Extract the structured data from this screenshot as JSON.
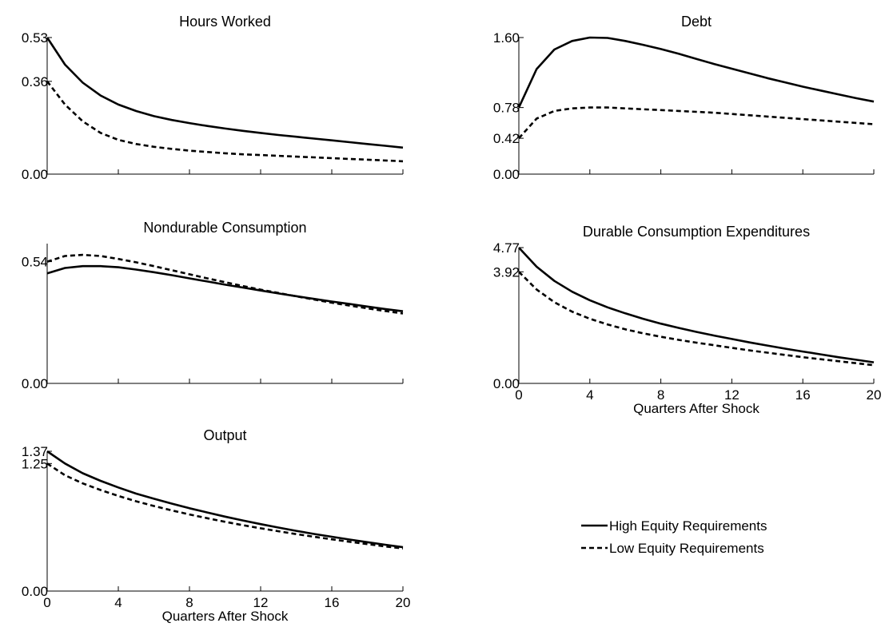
{
  "figure": {
    "legend": {
      "placement": "lower-right",
      "entries": [
        {
          "label": "High Equity Requirements",
          "style": "solid"
        },
        {
          "label": "Low Equity Requirements",
          "style": "dashed"
        }
      ]
    }
  },
  "chart_data": [
    {
      "type": "line",
      "title": "Hours Worked",
      "xlabel": "",
      "ylabel": "",
      "ylim": [
        0,
        0.53
      ],
      "yticks": [
        "0.53",
        "0.36",
        "0.00"
      ],
      "xticks": [],
      "x": [
        0,
        1,
        2,
        3,
        4,
        5,
        6,
        7,
        8,
        9,
        10,
        11,
        12,
        13,
        14,
        15,
        16,
        17,
        18,
        19,
        20
      ],
      "series": [
        {
          "name": "High Equity Requirements",
          "style": "solid",
          "values": [
            0.53,
            0.425,
            0.355,
            0.305,
            0.27,
            0.245,
            0.225,
            0.21,
            0.198,
            0.187,
            0.177,
            0.168,
            0.16,
            0.152,
            0.145,
            0.138,
            0.131,
            0.124,
            0.117,
            0.11,
            0.103
          ]
        },
        {
          "name": "Low Equity Requirements",
          "style": "dashed",
          "values": [
            0.36,
            0.27,
            0.205,
            0.16,
            0.133,
            0.117,
            0.106,
            0.098,
            0.091,
            0.086,
            0.081,
            0.077,
            0.074,
            0.071,
            0.068,
            0.065,
            0.062,
            0.059,
            0.056,
            0.053,
            0.05
          ]
        }
      ]
    },
    {
      "type": "line",
      "title": "Debt",
      "xlabel": "",
      "ylabel": "",
      "ylim": [
        0,
        1.6
      ],
      "yticks": [
        "1.60",
        "0.78",
        "0.42",
        "0.00"
      ],
      "xticks": [],
      "x": [
        0,
        1,
        2,
        3,
        4,
        5,
        6,
        7,
        8,
        9,
        10,
        11,
        12,
        13,
        14,
        15,
        16,
        17,
        18,
        19,
        20
      ],
      "series": [
        {
          "name": "High Equity Requirements",
          "style": "solid",
          "values": [
            0.78,
            1.23,
            1.46,
            1.56,
            1.6,
            1.595,
            1.56,
            1.515,
            1.465,
            1.41,
            1.35,
            1.29,
            1.235,
            1.18,
            1.125,
            1.075,
            1.025,
            0.98,
            0.935,
            0.89,
            0.85
          ]
        },
        {
          "name": "Low Equity Requirements",
          "style": "dashed",
          "values": [
            0.42,
            0.65,
            0.74,
            0.77,
            0.78,
            0.78,
            0.77,
            0.76,
            0.75,
            0.74,
            0.73,
            0.72,
            0.705,
            0.69,
            0.675,
            0.66,
            0.645,
            0.63,
            0.615,
            0.6,
            0.585
          ]
        }
      ]
    },
    {
      "type": "line",
      "title": "Nondurable Consumption",
      "xlabel": "",
      "ylabel": "",
      "ylim": [
        0,
        0.62
      ],
      "yticks": [
        "0.54",
        "0.00"
      ],
      "xticks": [],
      "x": [
        0,
        1,
        2,
        3,
        4,
        5,
        6,
        7,
        8,
        9,
        10,
        11,
        12,
        13,
        14,
        15,
        16,
        17,
        18,
        19,
        20
      ],
      "series": [
        {
          "name": "High Equity Requirements",
          "style": "solid",
          "values": [
            0.488,
            0.512,
            0.52,
            0.52,
            0.515,
            0.505,
            0.493,
            0.48,
            0.466,
            0.452,
            0.438,
            0.425,
            0.412,
            0.399,
            0.387,
            0.375,
            0.363,
            0.352,
            0.341,
            0.33,
            0.32
          ]
        },
        {
          "name": "Low Equity Requirements",
          "style": "dashed",
          "values": [
            0.54,
            0.565,
            0.57,
            0.565,
            0.552,
            0.537,
            0.52,
            0.502,
            0.484,
            0.466,
            0.449,
            0.432,
            0.416,
            0.401,
            0.386,
            0.372,
            0.358,
            0.345,
            0.333,
            0.321,
            0.31
          ]
        }
      ]
    },
    {
      "type": "line",
      "title": "Durable Consumption Expenditures",
      "xlabel": "Quarters After Shock",
      "ylabel": "",
      "ylim": [
        0,
        4.77
      ],
      "yticks": [
        "4.77",
        "3.92",
        "0.00"
      ],
      "xticks": [
        "0",
        "4",
        "8",
        "12",
        "16",
        "20"
      ],
      "x": [
        0,
        1,
        2,
        3,
        4,
        5,
        6,
        7,
        8,
        9,
        10,
        11,
        12,
        13,
        14,
        15,
        16,
        17,
        18,
        19,
        20
      ],
      "series": [
        {
          "name": "High Equity Requirements",
          "style": "solid",
          "values": [
            4.77,
            4.1,
            3.6,
            3.22,
            2.92,
            2.67,
            2.46,
            2.27,
            2.1,
            1.95,
            1.81,
            1.68,
            1.56,
            1.44,
            1.33,
            1.22,
            1.12,
            1.02,
            0.92,
            0.83,
            0.74
          ]
        },
        {
          "name": "Low Equity Requirements",
          "style": "dashed",
          "values": [
            3.92,
            3.3,
            2.85,
            2.52,
            2.27,
            2.07,
            1.9,
            1.76,
            1.64,
            1.53,
            1.43,
            1.34,
            1.25,
            1.16,
            1.08,
            1.0,
            0.92,
            0.85,
            0.78,
            0.71,
            0.64
          ]
        }
      ]
    },
    {
      "type": "line",
      "title": "Output",
      "xlabel": "Quarters After Shock",
      "ylabel": "",
      "ylim": [
        0,
        1.37
      ],
      "yticks": [
        "1.37",
        "1.25",
        "0.00"
      ],
      "xticks": [
        "0",
        "4",
        "8",
        "12",
        "16",
        "20"
      ],
      "x": [
        0,
        1,
        2,
        3,
        4,
        5,
        6,
        7,
        8,
        9,
        10,
        11,
        12,
        13,
        14,
        15,
        16,
        17,
        18,
        19,
        20
      ],
      "series": [
        {
          "name": "High Equity Requirements",
          "style": "solid",
          "values": [
            1.37,
            1.25,
            1.155,
            1.08,
            1.015,
            0.955,
            0.905,
            0.857,
            0.812,
            0.77,
            0.73,
            0.692,
            0.656,
            0.622,
            0.59,
            0.56,
            0.532,
            0.505,
            0.479,
            0.454,
            0.43
          ]
        },
        {
          "name": "Low Equity Requirements",
          "style": "dashed",
          "values": [
            1.25,
            1.135,
            1.055,
            0.99,
            0.932,
            0.88,
            0.834,
            0.791,
            0.751,
            0.714,
            0.679,
            0.646,
            0.615,
            0.586,
            0.558,
            0.532,
            0.507,
            0.483,
            0.46,
            0.438,
            0.417
          ]
        }
      ]
    }
  ]
}
